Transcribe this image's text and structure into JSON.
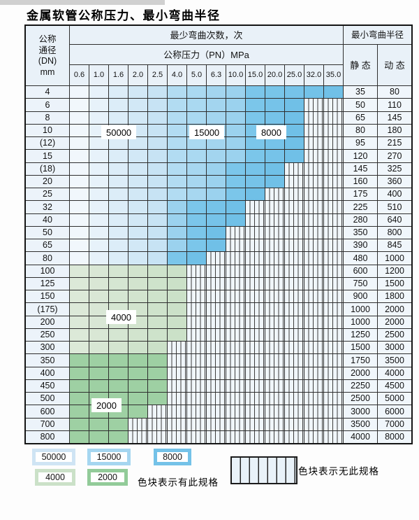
{
  "title": "金属软管公称压力、最小弯曲半径",
  "table": {
    "dn_header_lines": [
      "公称",
      "通径",
      "(DN)",
      "mm"
    ],
    "bend_cycles_header": "最少弯曲次数，次",
    "pressure_header": "公称压力（PN）MPa",
    "pressure_columns": [
      "0.6",
      "1.0",
      "1.6",
      "2.0",
      "2.5",
      "4.0",
      "5.0",
      "6.3",
      "10.0",
      "15.0",
      "20.0",
      "25.0",
      "32.0",
      "35.0"
    ],
    "radius_header": "最小弯曲半径",
    "static_header": "静 态",
    "dynamic_header": "动 态",
    "cycle_labels": [
      {
        "text": "50000"
      },
      {
        "text": "15000"
      },
      {
        "text": "8000"
      },
      {
        "text": "4000"
      },
      {
        "text": "2000"
      }
    ],
    "rows": [
      {
        "dn": "4",
        "static": "35",
        "dynamic": "80",
        "bands": [
          {
            "shade": "b1",
            "from": 1,
            "to": 5
          },
          {
            "shade": "b2",
            "from": 6,
            "to": 9
          },
          {
            "shade": "b3",
            "from": 10,
            "to": 14
          }
        ]
      },
      {
        "dn": "6",
        "static": "50",
        "dynamic": "110",
        "bands": [
          {
            "shade": "b1",
            "from": 1,
            "to": 5
          },
          {
            "shade": "b2",
            "from": 6,
            "to": 9
          },
          {
            "shade": "b3",
            "from": 10,
            "to": 12
          }
        ]
      },
      {
        "dn": "8",
        "static": "65",
        "dynamic": "145",
        "bands": [
          {
            "shade": "b1",
            "from": 1,
            "to": 5
          },
          {
            "shade": "b2",
            "from": 6,
            "to": 9
          },
          {
            "shade": "b3",
            "from": 10,
            "to": 12
          }
        ]
      },
      {
        "dn": "10",
        "static": "80",
        "dynamic": "180",
        "bands": [
          {
            "shade": "b1",
            "from": 1,
            "to": 5
          },
          {
            "shade": "b2",
            "from": 6,
            "to": 9
          },
          {
            "shade": "b3",
            "from": 10,
            "to": 12
          }
        ]
      },
      {
        "dn": "(12)",
        "static": "95",
        "dynamic": "215",
        "bands": [
          {
            "shade": "b1",
            "from": 1,
            "to": 5
          },
          {
            "shade": "b2",
            "from": 6,
            "to": 9
          },
          {
            "shade": "b3",
            "from": 10,
            "to": 12
          }
        ]
      },
      {
        "dn": "15",
        "static": "120",
        "dynamic": "270",
        "bands": [
          {
            "shade": "b1",
            "from": 1,
            "to": 5
          },
          {
            "shade": "b2",
            "from": 6,
            "to": 9
          },
          {
            "shade": "b3",
            "from": 10,
            "to": 12
          }
        ]
      },
      {
        "dn": "(18)",
        "static": "145",
        "dynamic": "325",
        "bands": [
          {
            "shade": "b1",
            "from": 1,
            "to": 5
          },
          {
            "shade": "b2",
            "from": 6,
            "to": 8
          },
          {
            "shade": "b3",
            "from": 9,
            "to": 11
          }
        ]
      },
      {
        "dn": "20",
        "static": "160",
        "dynamic": "360",
        "bands": [
          {
            "shade": "b1",
            "from": 1,
            "to": 5
          },
          {
            "shade": "b2",
            "from": 6,
            "to": 8
          },
          {
            "shade": "b3",
            "from": 9,
            "to": 11
          }
        ]
      },
      {
        "dn": "25",
        "static": "175",
        "dynamic": "400",
        "bands": [
          {
            "shade": "b1",
            "from": 1,
            "to": 5
          },
          {
            "shade": "b2",
            "from": 6,
            "to": 8
          },
          {
            "shade": "b3",
            "from": 9,
            "to": 10
          }
        ]
      },
      {
        "dn": "32",
        "static": "225",
        "dynamic": "510",
        "bands": [
          {
            "shade": "b1",
            "from": 1,
            "to": 5
          },
          {
            "shade": "b2",
            "from": 6,
            "to": 6
          },
          {
            "shade": "b3",
            "from": 7,
            "to": 9
          }
        ]
      },
      {
        "dn": "40",
        "static": "280",
        "dynamic": "640",
        "bands": [
          {
            "shade": "b1",
            "from": 1,
            "to": 5
          },
          {
            "shade": "b2",
            "from": 6,
            "to": 6
          },
          {
            "shade": "b3",
            "from": 7,
            "to": 9
          }
        ]
      },
      {
        "dn": "50",
        "static": "350",
        "dynamic": "800",
        "bands": [
          {
            "shade": "b1",
            "from": 1,
            "to": 5
          },
          {
            "shade": "b2",
            "from": 6,
            "to": 6
          },
          {
            "shade": "b3",
            "from": 7,
            "to": 8
          }
        ]
      },
      {
        "dn": "65",
        "static": "390",
        "dynamic": "845",
        "bands": [
          {
            "shade": "b1",
            "from": 1,
            "to": 5
          },
          {
            "shade": "b2",
            "from": 6,
            "to": 6
          },
          {
            "shade": "b3",
            "from": 7,
            "to": 8
          }
        ]
      },
      {
        "dn": "80",
        "static": "480",
        "dynamic": "1000",
        "bands": [
          {
            "shade": "b1",
            "from": 1,
            "to": 5
          },
          {
            "shade": "b3",
            "from": 6,
            "to": 7
          }
        ]
      },
      {
        "dn": "100",
        "static": "600",
        "dynamic": "1200",
        "bands": [
          {
            "shade": "g1",
            "from": 1,
            "to": 6
          }
        ]
      },
      {
        "dn": "125",
        "static": "750",
        "dynamic": "1500",
        "bands": [
          {
            "shade": "g1",
            "from": 1,
            "to": 6
          }
        ]
      },
      {
        "dn": "150",
        "static": "900",
        "dynamic": "1800",
        "bands": [
          {
            "shade": "g1",
            "from": 1,
            "to": 6
          }
        ]
      },
      {
        "dn": "(175)",
        "static": "1000",
        "dynamic": "2000",
        "bands": [
          {
            "shade": "g1",
            "from": 1,
            "to": 6
          }
        ]
      },
      {
        "dn": "200",
        "static": "1000",
        "dynamic": "2000",
        "bands": [
          {
            "shade": "g1",
            "from": 1,
            "to": 6
          }
        ]
      },
      {
        "dn": "250",
        "static": "1250",
        "dynamic": "2500",
        "bands": [
          {
            "shade": "g1",
            "from": 1,
            "to": 6
          }
        ]
      },
      {
        "dn": "300",
        "static": "1500",
        "dynamic": "3000",
        "bands": [
          {
            "shade": "g1",
            "from": 1,
            "to": 5
          }
        ]
      },
      {
        "dn": "350",
        "static": "1750",
        "dynamic": "3500",
        "bands": [
          {
            "shade": "g2",
            "from": 1,
            "to": 5
          }
        ]
      },
      {
        "dn": "400",
        "static": "2000",
        "dynamic": "4000",
        "bands": [
          {
            "shade": "g2",
            "from": 1,
            "to": 5
          }
        ]
      },
      {
        "dn": "450",
        "static": "2250",
        "dynamic": "4500",
        "bands": [
          {
            "shade": "g2",
            "from": 1,
            "to": 5
          }
        ]
      },
      {
        "dn": "500",
        "static": "2500",
        "dynamic": "5000",
        "bands": [
          {
            "shade": "g2",
            "from": 1,
            "to": 5
          }
        ]
      },
      {
        "dn": "600",
        "static": "3000",
        "dynamic": "6000",
        "bands": [
          {
            "shade": "g2",
            "from": 1,
            "to": 4
          }
        ]
      },
      {
        "dn": "700",
        "static": "3500",
        "dynamic": "7000",
        "bands": [
          {
            "shade": "g2",
            "from": 1,
            "to": 3
          }
        ]
      },
      {
        "dn": "800",
        "static": "4000",
        "dynamic": "8000",
        "bands": [
          {
            "shade": "g2",
            "from": 1,
            "to": 3
          }
        ]
      }
    ]
  },
  "colors": {
    "b1_start": "#f1f7fc",
    "b1_end": "#c7e3f4",
    "b1_frame": "#cfe4f4",
    "b2_start": "#b2dcf2",
    "b2_end": "#9bd2ee",
    "b2_frame": "#a5d6f0",
    "b3_start": "#7bc6ea",
    "b3_end": "#70c0e7",
    "b3_frame": "#74c2e8",
    "g1_start": "#dce9d8",
    "g1_end": "#cbe1c8",
    "g1_frame": "#cbe1c8",
    "g2_start": "#9ed0a3",
    "g2_end": "#9ed0a3",
    "g2_frame": "#92cb99",
    "hatch_bg": "#f0f6fa",
    "hatch_line": "#3c3c3c",
    "header_bg": "#e9f1f8",
    "grid_line": "#2e2e2e"
  },
  "legend": {
    "swatches": [
      {
        "label": "50000",
        "shade": "b1"
      },
      {
        "label": "15000",
        "shade": "b2"
      },
      {
        "label": "8000",
        "shade": "b3"
      },
      {
        "label": "4000",
        "shade": "g1"
      },
      {
        "label": "2000",
        "shade": "g2"
      }
    ],
    "has_spec_text": "色块表示有此规格",
    "no_spec_text": "色块表示无此规格"
  }
}
